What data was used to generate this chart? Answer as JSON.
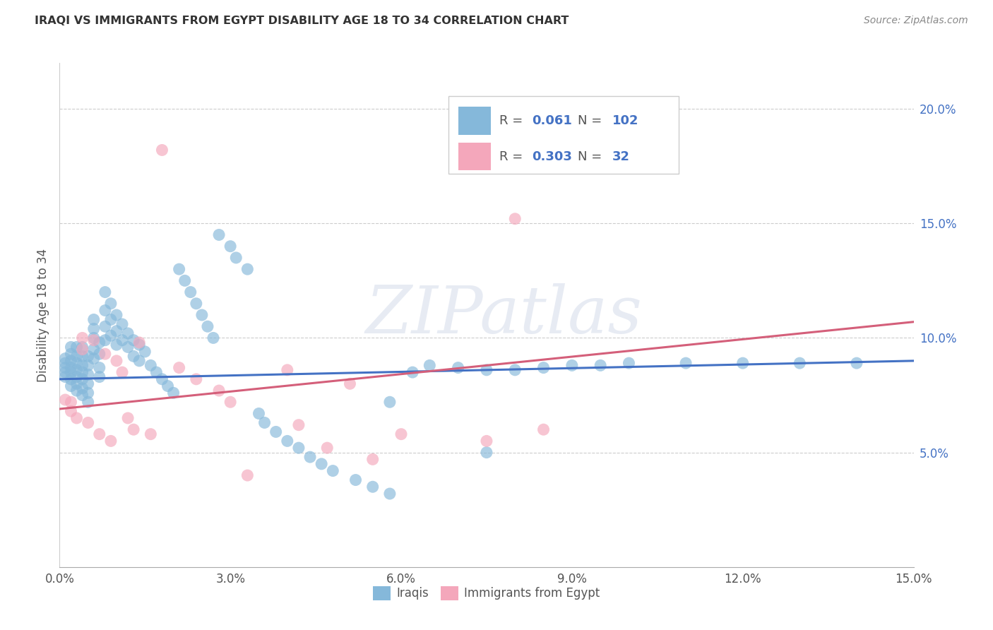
{
  "title": "IRAQI VS IMMIGRANTS FROM EGYPT DISABILITY AGE 18 TO 34 CORRELATION CHART",
  "source": "Source: ZipAtlas.com",
  "ylabel": "Disability Age 18 to 34",
  "xlim": [
    0.0,
    0.15
  ],
  "ylim": [
    0.0,
    0.22
  ],
  "xtick_vals": [
    0.0,
    0.03,
    0.06,
    0.09,
    0.12,
    0.15
  ],
  "xtick_labels": [
    "0.0%",
    "3.0%",
    "6.0%",
    "9.0%",
    "12.0%",
    "15.0%"
  ],
  "ytick_vals": [
    0.05,
    0.1,
    0.15,
    0.2
  ],
  "ytick_labels": [
    "5.0%",
    "10.0%",
    "15.0%",
    "20.0%"
  ],
  "iraqis_R": "0.061",
  "iraqis_N": "102",
  "egypt_R": "0.303",
  "egypt_N": "32",
  "blue_color": "#85b8da",
  "pink_color": "#f4a7bb",
  "line_blue": "#4472c4",
  "line_pink": "#d45f7a",
  "watermark_text": "ZIPatlas",
  "blue_line_start_y": 0.082,
  "blue_line_end_y": 0.09,
  "pink_line_start_y": 0.069,
  "pink_line_end_y": 0.107,
  "iraqis_x": [
    0.001,
    0.001,
    0.001,
    0.001,
    0.001,
    0.002,
    0.002,
    0.002,
    0.002,
    0.002,
    0.002,
    0.002,
    0.003,
    0.003,
    0.003,
    0.003,
    0.003,
    0.003,
    0.003,
    0.004,
    0.004,
    0.004,
    0.004,
    0.004,
    0.004,
    0.004,
    0.005,
    0.005,
    0.005,
    0.005,
    0.005,
    0.005,
    0.006,
    0.006,
    0.006,
    0.006,
    0.006,
    0.007,
    0.007,
    0.007,
    0.007,
    0.008,
    0.008,
    0.008,
    0.008,
    0.009,
    0.009,
    0.009,
    0.01,
    0.01,
    0.01,
    0.011,
    0.011,
    0.012,
    0.012,
    0.013,
    0.013,
    0.014,
    0.014,
    0.015,
    0.016,
    0.017,
    0.018,
    0.019,
    0.02,
    0.021,
    0.022,
    0.023,
    0.024,
    0.025,
    0.026,
    0.027,
    0.028,
    0.03,
    0.031,
    0.033,
    0.035,
    0.036,
    0.038,
    0.04,
    0.042,
    0.044,
    0.046,
    0.048,
    0.052,
    0.055,
    0.058,
    0.062,
    0.065,
    0.07,
    0.075,
    0.08,
    0.085,
    0.09,
    0.095,
    0.1,
    0.11,
    0.12,
    0.13,
    0.14,
    0.058,
    0.075
  ],
  "iraqis_y": [
    0.083,
    0.085,
    0.087,
    0.089,
    0.091,
    0.079,
    0.082,
    0.085,
    0.087,
    0.09,
    0.093,
    0.096,
    0.077,
    0.08,
    0.083,
    0.086,
    0.089,
    0.092,
    0.096,
    0.075,
    0.078,
    0.082,
    0.085,
    0.088,
    0.092,
    0.096,
    0.072,
    0.076,
    0.08,
    0.084,
    0.088,
    0.092,
    0.1,
    0.104,
    0.108,
    0.095,
    0.091,
    0.098,
    0.093,
    0.087,
    0.083,
    0.12,
    0.112,
    0.105,
    0.099,
    0.115,
    0.108,
    0.101,
    0.11,
    0.103,
    0.097,
    0.106,
    0.099,
    0.102,
    0.096,
    0.099,
    0.092,
    0.097,
    0.09,
    0.094,
    0.088,
    0.085,
    0.082,
    0.079,
    0.076,
    0.13,
    0.125,
    0.12,
    0.115,
    0.11,
    0.105,
    0.1,
    0.145,
    0.14,
    0.135,
    0.13,
    0.067,
    0.063,
    0.059,
    0.055,
    0.052,
    0.048,
    0.045,
    0.042,
    0.038,
    0.035,
    0.032,
    0.085,
    0.088,
    0.087,
    0.086,
    0.086,
    0.087,
    0.088,
    0.088,
    0.089,
    0.089,
    0.089,
    0.089,
    0.089,
    0.072,
    0.05
  ],
  "egypt_x": [
    0.001,
    0.002,
    0.002,
    0.003,
    0.004,
    0.004,
    0.005,
    0.006,
    0.007,
    0.008,
    0.009,
    0.01,
    0.011,
    0.012,
    0.013,
    0.014,
    0.016,
    0.018,
    0.021,
    0.024,
    0.028,
    0.03,
    0.033,
    0.04,
    0.042,
    0.047,
    0.051,
    0.055,
    0.06,
    0.075,
    0.08,
    0.085
  ],
  "egypt_y": [
    0.073,
    0.068,
    0.072,
    0.065,
    0.095,
    0.1,
    0.063,
    0.099,
    0.058,
    0.093,
    0.055,
    0.09,
    0.085,
    0.065,
    0.06,
    0.098,
    0.058,
    0.182,
    0.087,
    0.082,
    0.077,
    0.072,
    0.04,
    0.086,
    0.062,
    0.052,
    0.08,
    0.047,
    0.058,
    0.055,
    0.152,
    0.06
  ]
}
